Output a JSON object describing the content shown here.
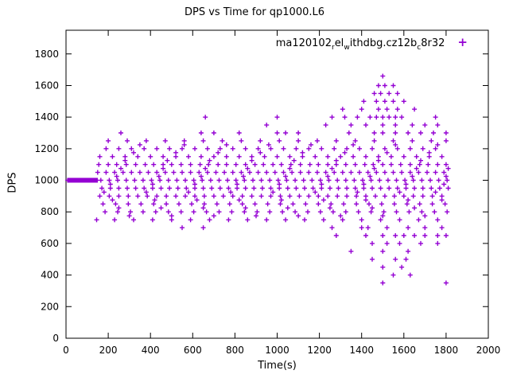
{
  "title": "DPS vs Time for qp1000.L6",
  "legend": {
    "segments": [
      {
        "text": "ma120102"
      },
      {
        "text": "r",
        "sub": true
      },
      {
        "text": "el"
      },
      {
        "text": "w",
        "sub": true
      },
      {
        "text": "ithdbg.cz12b"
      },
      {
        "text": "c",
        "sub": true
      },
      {
        "text": "8r32"
      }
    ],
    "marker": "+"
  },
  "chart_data": {
    "type": "scatter",
    "title": "DPS vs Time for qp1000.L6",
    "xlabel": "Time(s)",
    "ylabel": "DPS",
    "xlim": [
      0,
      2000
    ],
    "ylim": [
      0,
      1950
    ],
    "xticks": [
      0,
      200,
      400,
      600,
      800,
      1000,
      1200,
      1400,
      1600,
      1800,
      2000
    ],
    "yticks": [
      0,
      200,
      400,
      600,
      800,
      1000,
      1200,
      1400,
      1600,
      1800
    ],
    "grid": false,
    "legend_position": "top-right-inside",
    "marker": "plus",
    "color": "#9400d3",
    "rows": [
      {
        "y": 1000,
        "x": [
          8,
          12,
          16,
          20,
          24,
          28,
          32,
          36,
          40,
          44,
          48,
          52,
          56,
          60,
          64,
          68,
          72,
          76,
          80,
          84,
          88,
          92,
          96,
          100,
          104,
          108,
          112,
          116,
          120,
          124,
          128,
          132,
          136,
          140,
          144,
          148,
          165,
          205,
          245,
          285,
          325,
          365,
          405,
          445,
          485,
          525,
          565,
          605,
          645,
          685,
          725,
          765,
          805,
          845,
          885,
          925,
          965,
          1005,
          1045,
          1085,
          1125,
          1165,
          1205,
          1245,
          1285,
          1325,
          1365,
          1405,
          1445,
          1485,
          1525,
          1565,
          1605,
          1645,
          1685,
          1725,
          1765,
          1805
        ]
      },
      {
        "y": 1050,
        "x": [
          150,
          190,
          230,
          270,
          310,
          350,
          390,
          430,
          470,
          510,
          550,
          590,
          630,
          670,
          710,
          750,
          790,
          830,
          870,
          910,
          950,
          990,
          1030,
          1070,
          1110,
          1150,
          1190,
          1230,
          1270,
          1310,
          1350,
          1390,
          1430,
          1470,
          1510,
          1550,
          1590,
          1630,
          1670,
          1710,
          1750,
          1790
        ]
      },
      {
        "y": 950,
        "x": [
          170,
          210,
          250,
          290,
          330,
          370,
          410,
          450,
          490,
          530,
          570,
          610,
          650,
          690,
          730,
          770,
          810,
          850,
          890,
          930,
          970,
          1010,
          1050,
          1090,
          1130,
          1170,
          1210,
          1250,
          1290,
          1330,
          1370,
          1410,
          1450,
          1490,
          1530,
          1570,
          1610,
          1650,
          1690,
          1730,
          1770,
          1810
        ]
      },
      {
        "y": 1100,
        "x": [
          155,
          200,
          240,
          285,
          330,
          375,
          415,
          460,
          500,
          545,
          590,
          635,
          675,
          720,
          760,
          805,
          850,
          895,
          935,
          980,
          1020,
          1065,
          1110,
          1155,
          1195,
          1240,
          1280,
          1325,
          1370,
          1415,
          1455,
          1500,
          1540,
          1585,
          1630,
          1675,
          1715,
          1760,
          1800
        ]
      },
      {
        "y": 900,
        "x": [
          160,
          205,
          250,
          295,
          340,
          385,
          430,
          475,
          520,
          565,
          610,
          655,
          700,
          745,
          790,
          835,
          880,
          925,
          970,
          1015,
          1060,
          1105,
          1150,
          1195,
          1240,
          1285,
          1330,
          1375,
          1420,
          1465,
          1510,
          1555,
          1600,
          1645,
          1690,
          1735,
          1780
        ]
      },
      {
        "y": 1150,
        "x": [
          160,
          220,
          280,
          340,
          400,
          460,
          520,
          580,
          640,
          700,
          760,
          820,
          880,
          940,
          1000,
          1060,
          1120,
          1180,
          1240,
          1300,
          1360,
          1420,
          1480,
          1540,
          1600,
          1660,
          1720,
          1780
        ]
      },
      {
        "y": 850,
        "x": [
          175,
          235,
          295,
          355,
          415,
          475,
          535,
          595,
          655,
          715,
          775,
          835,
          895,
          955,
          1015,
          1075,
          1135,
          1195,
          1255,
          1315,
          1375,
          1435,
          1495,
          1555,
          1615,
          1675,
          1735,
          1795
        ]
      },
      {
        "y": 1200,
        "x": [
          190,
          250,
          310,
          370,
          430,
          490,
          550,
          610,
          670,
          730,
          790,
          850,
          910,
          970,
          1030,
          1090,
          1150,
          1210,
          1270,
          1330,
          1390,
          1450,
          1510,
          1570,
          1630,
          1690,
          1750
        ]
      },
      {
        "y": 800,
        "x": [
          185,
          245,
          305,
          365,
          425,
          485,
          545,
          605,
          665,
          725,
          785,
          845,
          905,
          965,
          1025,
          1085,
          1145,
          1205,
          1265,
          1325,
          1385,
          1445,
          1505,
          1565,
          1625,
          1685,
          1745,
          1805
        ]
      },
      {
        "y": 1250,
        "x": [
          200,
          290,
          380,
          470,
          560,
          650,
          740,
          830,
          920,
          1010,
          1100,
          1190,
          1280,
          1370,
          1460,
          1550,
          1640,
          1730,
          1800
        ]
      },
      {
        "y": 750,
        "x": [
          145,
          230,
          320,
          410,
          500,
          590,
          680,
          770,
          860,
          950,
          1040,
          1130,
          1220,
          1310,
          1400,
          1490,
          1580,
          1670,
          1760
        ]
      },
      {
        "y": 975,
        "x": [
          210,
          410,
          610,
          810,
          1010,
          1210,
          1410,
          1610,
          1790
        ]
      },
      {
        "y": 1025,
        "x": [
          240,
          440,
          640,
          840,
          1040,
          1240,
          1440,
          1640,
          1800
        ]
      },
      {
        "y": 925,
        "x": [
          180,
          380,
          580,
          780,
          980,
          1180,
          1380,
          1580,
          1750
        ]
      },
      {
        "y": 1075,
        "x": [
          260,
          460,
          660,
          860,
          1060,
          1260,
          1460,
          1660,
          1810
        ]
      },
      {
        "y": 875,
        "x": [
          220,
          420,
          620,
          820,
          1020,
          1220,
          1420,
          1620,
          1780
        ]
      },
      {
        "y": 1125,
        "x": [
          280,
          480,
          680,
          880,
          1080,
          1280,
          1480,
          1680
        ]
      },
      {
        "y": 825,
        "x": [
          250,
          450,
          650,
          850,
          1050,
          1250,
          1450,
          1650
        ]
      },
      {
        "y": 1175,
        "x": [
          320,
          520,
          720,
          920,
          1120,
          1320,
          1520,
          1720
        ]
      },
      {
        "y": 775,
        "x": [
          300,
          500,
          700,
          900,
          1100,
          1300,
          1500,
          1700
        ]
      },
      {
        "y": 1225,
        "x": [
          350,
          560,
          760,
          960,
          1160,
          1360,
          1560,
          1760
        ]
      },
      {
        "y": 1300,
        "x": [
          260,
          640,
          700,
          820,
          1000,
          1040,
          1100,
          1340,
          1460,
          1500,
          1560,
          1620,
          1680,
          1740,
          1800
        ]
      },
      {
        "y": 1350,
        "x": [
          950,
          1230,
          1350,
          1420,
          1500,
          1560,
          1640,
          1700,
          1760
        ]
      },
      {
        "y": 1400,
        "x": [
          660,
          1000,
          1260,
          1320,
          1380,
          1440,
          1470,
          1500,
          1530,
          1560,
          1590,
          1750
        ]
      },
      {
        "y": 1450,
        "x": [
          1310,
          1400,
          1480,
          1520,
          1570,
          1650
        ]
      },
      {
        "y": 1500,
        "x": [
          1410,
          1470,
          1510,
          1550,
          1600
        ]
      },
      {
        "y": 1550,
        "x": [
          1460,
          1490,
          1530,
          1570
        ]
      },
      {
        "y": 1600,
        "x": [
          1480,
          1510,
          1550
        ]
      },
      {
        "y": 1660,
        "x": [
          1500
        ]
      },
      {
        "y": 700,
        "x": [
          550,
          650,
          1260,
          1400,
          1430,
          1520,
          1620,
          1700,
          1780
        ]
      },
      {
        "y": 650,
        "x": [
          1280,
          1420,
          1500,
          1560,
          1600,
          1650,
          1700,
          1760,
          1800
        ]
      },
      {
        "y": 600,
        "x": [
          1450,
          1520,
          1580,
          1680,
          1760
        ]
      },
      {
        "y": 550,
        "x": [
          1350,
          1500,
          1620
        ]
      },
      {
        "y": 500,
        "x": [
          1450,
          1560,
          1610
        ]
      },
      {
        "y": 450,
        "x": [
          1500,
          1590
        ]
      },
      {
        "y": 400,
        "x": [
          1550,
          1630
        ]
      },
      {
        "y": 350,
        "x": [
          1500,
          1800
        ]
      }
    ]
  }
}
